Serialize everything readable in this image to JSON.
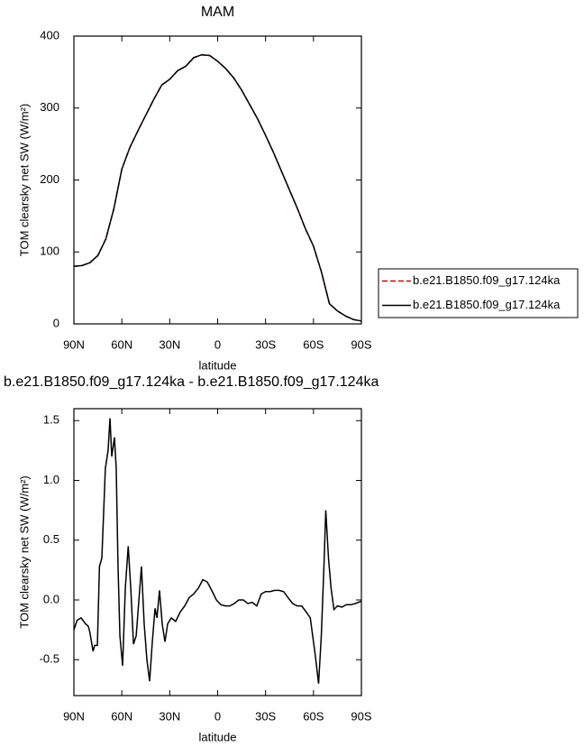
{
  "chart_data": [
    {
      "type": "line",
      "title": "MAM",
      "x_label": "latitude",
      "y_label": "TOM clearsky net SW (W/m²)",
      "x": [
        90,
        85,
        80,
        75,
        70,
        65,
        60,
        55,
        50,
        45,
        40,
        35,
        30,
        25,
        20,
        15,
        10,
        5,
        0,
        -5,
        -10,
        -15,
        -20,
        -25,
        -30,
        -35,
        -40,
        -45,
        -50,
        -55,
        -60,
        -65,
        -70,
        -75,
        -80,
        -85,
        -90
      ],
      "series": [
        {
          "name": "b.e21.B1850.f09_g17.124ka",
          "color": "#cc0000",
          "dash": "dashed",
          "values": [
            80,
            81,
            85,
            95,
            118,
            160,
            215,
            245,
            268,
            290,
            312,
            332,
            340,
            352,
            358,
            370,
            374,
            373,
            365,
            355,
            342,
            325,
            305,
            285,
            262,
            238,
            212,
            186,
            160,
            132,
            108,
            72,
            28,
            18,
            11,
            6,
            4
          ]
        },
        {
          "name": "b.e21.B1850.f09_g17.124ka",
          "color": "#000000",
          "dash": "solid",
          "values": [
            80,
            81,
            85,
            95,
            118,
            160,
            215,
            245,
            268,
            290,
            312,
            332,
            340,
            352,
            358,
            370,
            374,
            373,
            365,
            355,
            342,
            325,
            305,
            285,
            262,
            238,
            212,
            186,
            160,
            132,
            108,
            72,
            28,
            18,
            11,
            6,
            4
          ]
        }
      ],
      "xlim": [
        90,
        -90
      ],
      "xticks": [
        {
          "value": 90,
          "label": "90N"
        },
        {
          "value": 60,
          "label": "60N"
        },
        {
          "value": 30,
          "label": "30N"
        },
        0,
        {
          "value": -30,
          "label": "30S"
        },
        {
          "value": -60,
          "label": "60S"
        },
        {
          "value": -90,
          "label": "90S"
        }
      ],
      "ylim": [
        0,
        400
      ],
      "yticks": [
        0,
        100,
        200,
        300,
        400
      ],
      "legend": "right"
    },
    {
      "type": "line",
      "title": "b.e21.B1850.f09_g17.124ka - b.e21.B1850.f09_g17.124ka",
      "x_label": "latitude",
      "y_label": "TOM clearsky net SW (W/m²)",
      "x": [
        90,
        88,
        85.5,
        82.7,
        81,
        80,
        78,
        77,
        75.3,
        74,
        72.5,
        70.3,
        68.6,
        67.4,
        66.3,
        64.6,
        63.5,
        62.4,
        61.2,
        59.5,
        57.8,
        56,
        54.4,
        52.7,
        51,
        49.3,
        47.7,
        46,
        44.3,
        42.6,
        40.9,
        39.2,
        38,
        36.4,
        34.7,
        33,
        31.3,
        29,
        26.3,
        23.4,
        20.6,
        17.8,
        15,
        12,
        9.3,
        6.5,
        3.7,
        0.8,
        -2,
        -4.8,
        -7.6,
        -10.4,
        -13.2,
        -16,
        -18.9,
        -21.7,
        -24.5,
        -27.3,
        -30,
        -32.9,
        -35.7,
        -38.5,
        -41.3,
        -44,
        -47,
        -49.8,
        -52.6,
        -55.4,
        -58,
        -61,
        -63.2,
        -64.9,
        -66.6,
        -67.7,
        -69.4,
        -71,
        -72.8,
        -75,
        -77.8,
        -80.6,
        -83.4,
        -86.2,
        -90
      ],
      "series": [
        {
          "color": "#000000",
          "dash": "solid",
          "values": [
            -0.25,
            -0.17,
            -0.15,
            -0.2,
            -0.22,
            -0.27,
            -0.43,
            -0.38,
            -0.38,
            0.28,
            0.35,
            1.1,
            1.25,
            1.52,
            1.2,
            1.36,
            1.1,
            0.3,
            -0.3,
            -0.55,
            0.1,
            0.45,
            0.1,
            -0.37,
            -0.3,
            0.0,
            0.28,
            -0.2,
            -0.5,
            -0.68,
            -0.35,
            -0.07,
            -0.15,
            0.08,
            -0.2,
            -0.35,
            -0.2,
            -0.15,
            -0.18,
            -0.1,
            -0.05,
            0.02,
            0.05,
            0.1,
            0.17,
            0.15,
            0.08,
            0.0,
            -0.04,
            -0.05,
            -0.05,
            -0.03,
            0.0,
            0.0,
            -0.03,
            -0.02,
            -0.05,
            0.05,
            0.07,
            0.07,
            0.08,
            0.08,
            0.07,
            0.02,
            -0.03,
            -0.05,
            -0.05,
            -0.1,
            -0.15,
            -0.45,
            -0.7,
            -0.3,
            0.3,
            0.75,
            0.35,
            0.1,
            -0.08,
            -0.05,
            -0.06,
            -0.04,
            -0.04,
            -0.03,
            -0.01
          ]
        }
      ],
      "xlim": [
        90,
        -90
      ],
      "xticks": [
        {
          "value": 90,
          "label": "90N"
        },
        {
          "value": 60,
          "label": "60N"
        },
        {
          "value": 30,
          "label": "30N"
        },
        0,
        {
          "value": -30,
          "label": "30S"
        },
        {
          "value": -60,
          "label": "60S"
        },
        {
          "value": -90,
          "label": "90S"
        }
      ],
      "ylim": [
        -0.8,
        1.6
      ],
      "yticks": [
        -0.5,
        {
          "value": 0,
          "label": "0.0"
        },
        0.5,
        {
          "value": 1,
          "label": "1.0"
        },
        1.5
      ]
    }
  ]
}
